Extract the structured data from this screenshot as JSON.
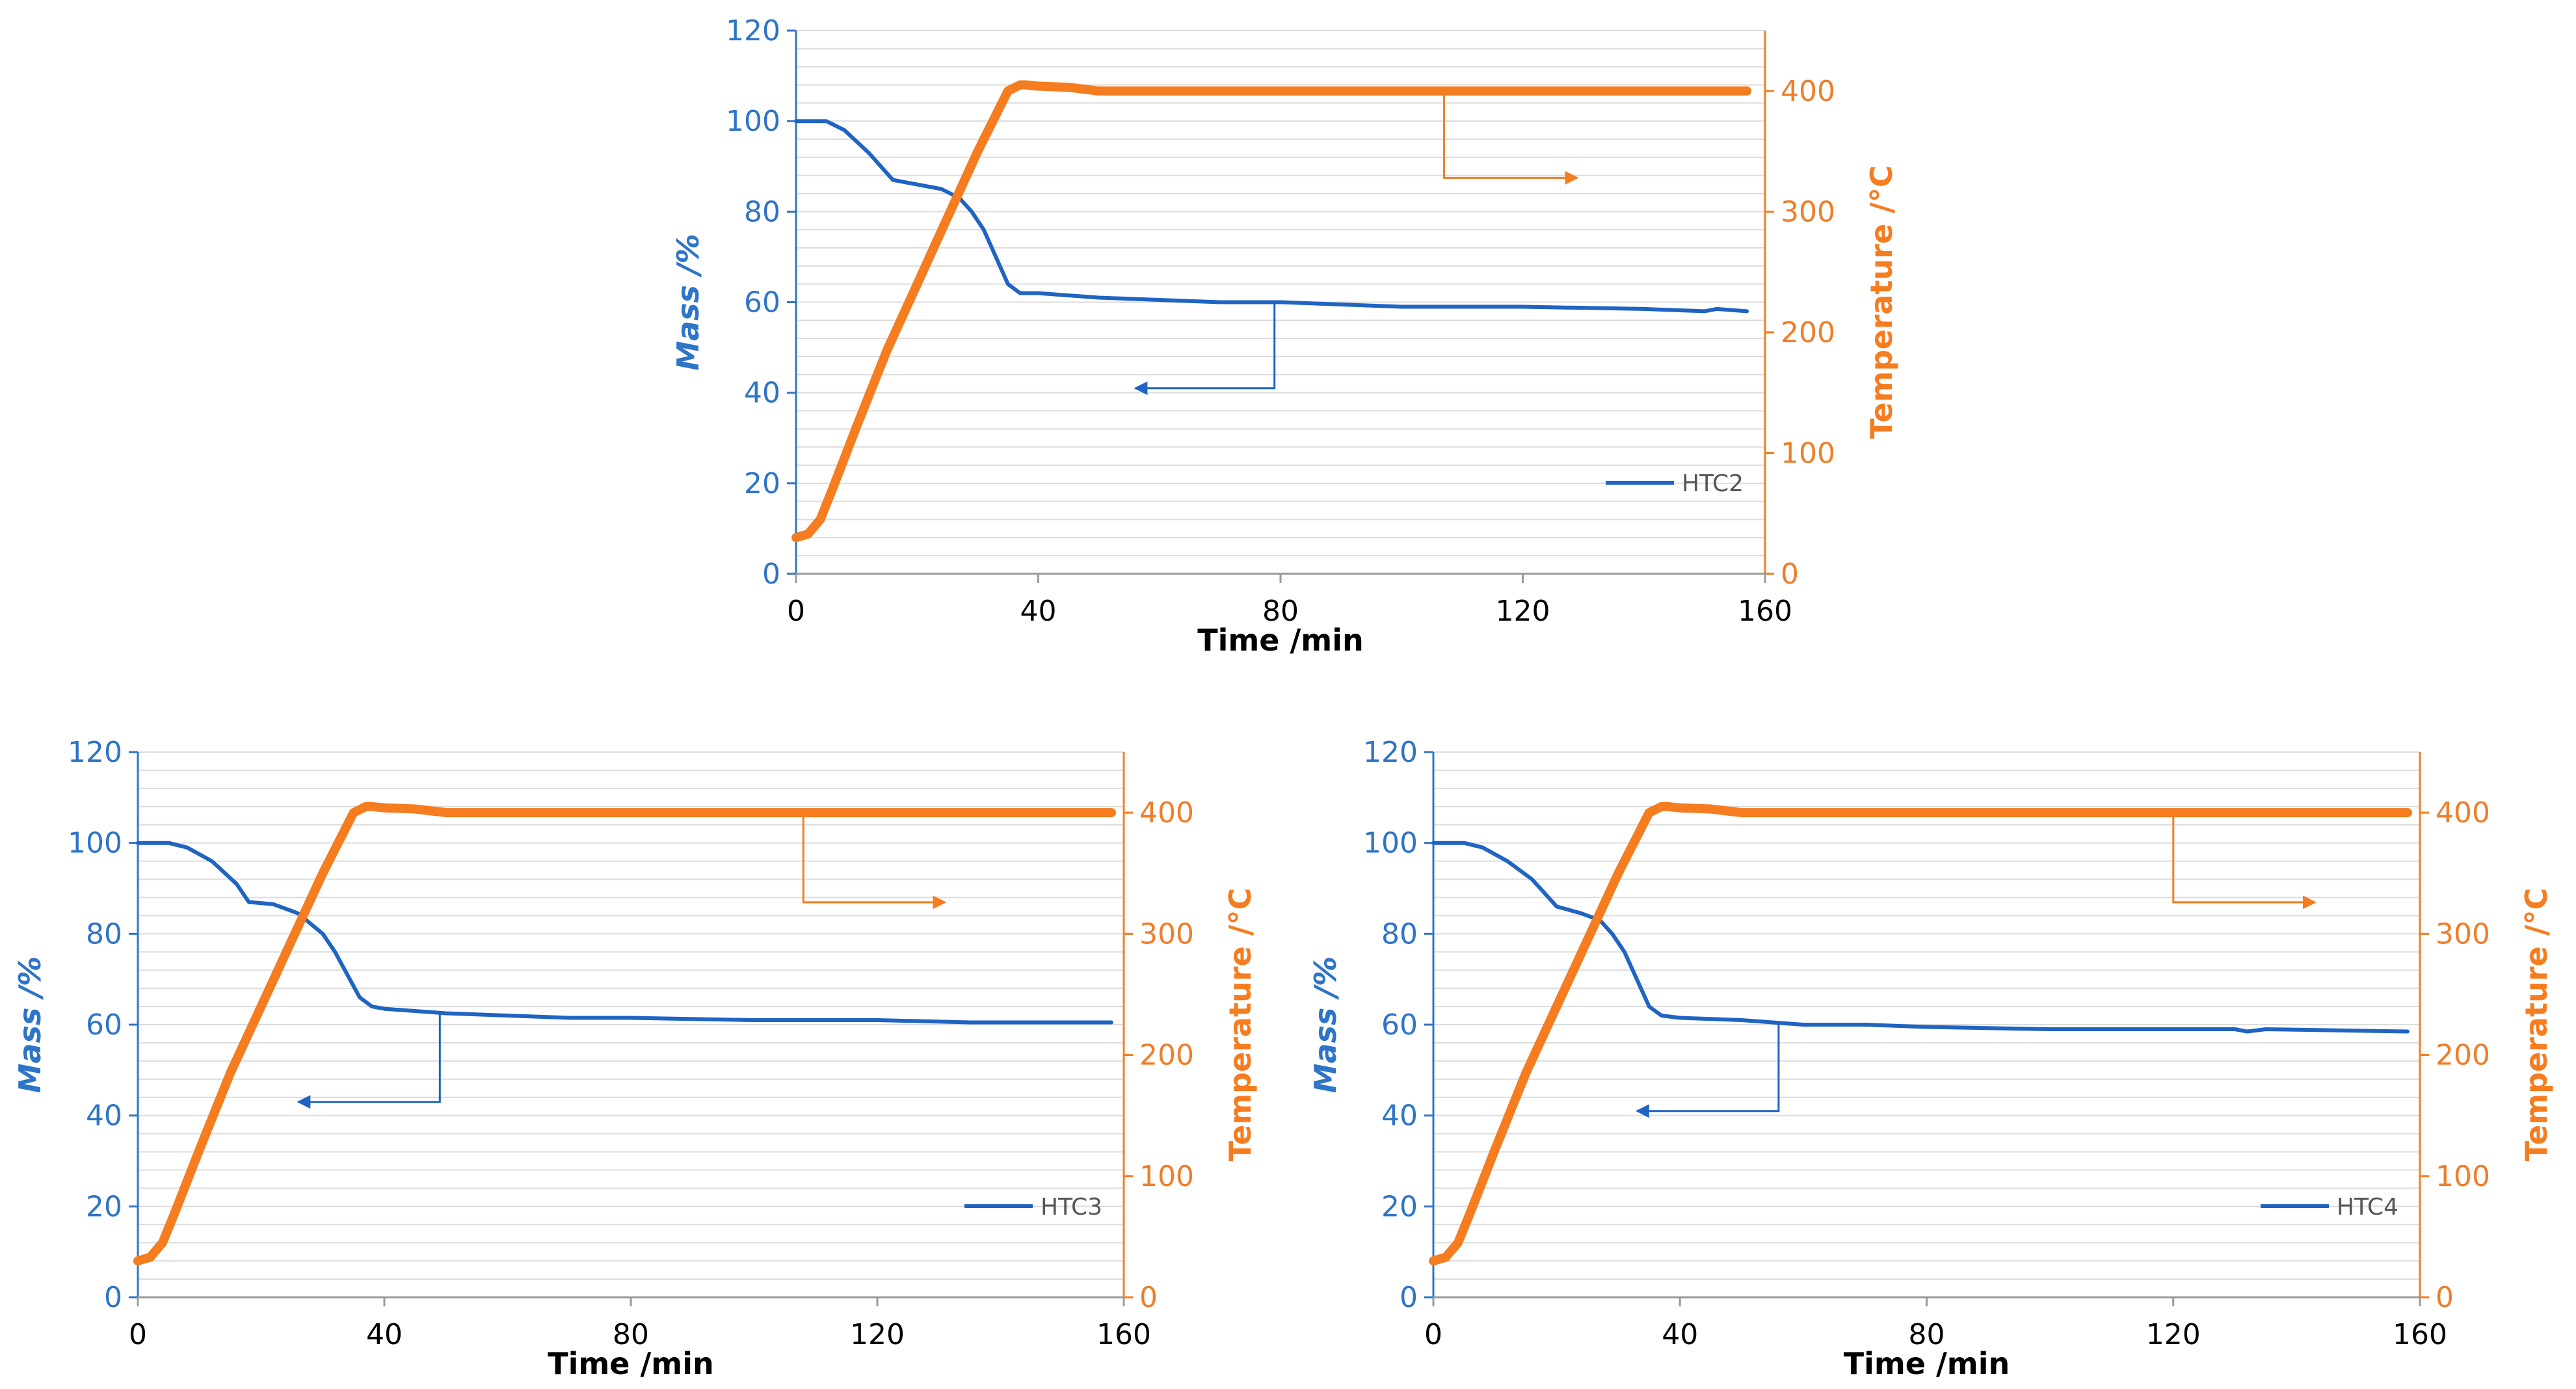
{
  "colors": {
    "mass": "#1f64c3",
    "temperature": "#f57c1f",
    "mass_axis": "#2e74c8",
    "grid": "#dcdcdc"
  },
  "chart_data": [
    {
      "type": "line",
      "series_name": "HTC2",
      "xlabel": "Time /min",
      "ylabel_left": "Mass /%",
      "ylabel_right": "Temperature /°C",
      "xlim": [
        0,
        160
      ],
      "ylim_left": [
        0,
        120
      ],
      "ylim_right": [
        0,
        450
      ],
      "x_ticks": [
        0,
        40,
        80,
        120,
        160
      ],
      "y_left_ticks": [
        0,
        20,
        40,
        60,
        80,
        100,
        120
      ],
      "y_right_ticks": [
        0,
        100,
        200,
        300,
        400
      ],
      "legend": {
        "entries": [
          "HTC2"
        ],
        "position": "bottom-right"
      },
      "series": [
        {
          "name": "HTC2",
          "axis": "left",
          "x": [
            0,
            3,
            5,
            8,
            12,
            16,
            20,
            24,
            27,
            29,
            31,
            33,
            35,
            37,
            40,
            50,
            60,
            70,
            80,
            100,
            120,
            140,
            150,
            152,
            157
          ],
          "values": [
            100,
            100,
            100,
            98,
            93,
            87,
            86,
            85,
            83,
            80,
            76,
            70,
            64,
            62,
            62,
            61,
            60.5,
            60,
            60,
            59,
            59,
            58.5,
            58,
            58.5,
            58
          ]
        },
        {
          "name": "Temperature",
          "axis": "right",
          "x": [
            0,
            2,
            4,
            6,
            10,
            15,
            20,
            25,
            30,
            35,
            37,
            38,
            40,
            45,
            50,
            157
          ],
          "values": [
            30,
            33,
            45,
            70,
            122,
            185,
            240,
            295,
            350,
            400,
            405,
            405,
            404,
            403,
            400,
            400
          ]
        }
      ],
      "annotations": [
        {
          "type": "arrow",
          "points": [
            [
              107,
              400
            ],
            [
              107,
              328
            ],
            [
              129,
              328
            ]
          ],
          "axis": "right",
          "color": "temperature"
        },
        {
          "type": "arrow",
          "points": [
            [
              79,
              60
            ],
            [
              79,
              41
            ],
            [
              56,
              41
            ]
          ],
          "axis": "left",
          "color": "mass"
        }
      ]
    },
    {
      "type": "line",
      "series_name": "HTC3",
      "xlabel": "Time /min",
      "ylabel_left": "Mass /%",
      "ylabel_right": "Temperature /°C",
      "xlim": [
        0,
        160
      ],
      "ylim_left": [
        0,
        120
      ],
      "ylim_right": [
        0,
        450
      ],
      "x_ticks": [
        0,
        40,
        80,
        120,
        160
      ],
      "y_left_ticks": [
        0,
        20,
        40,
        60,
        80,
        100,
        120
      ],
      "y_right_ticks": [
        0,
        100,
        200,
        300,
        400
      ],
      "legend": {
        "entries": [
          "HTC3"
        ],
        "position": "bottom-right"
      },
      "series": [
        {
          "name": "HTC3",
          "axis": "left",
          "x": [
            0,
            2,
            5,
            8,
            12,
            16,
            18,
            22,
            26,
            30,
            32,
            34,
            36,
            38,
            40,
            50,
            60,
            70,
            80,
            100,
            120,
            135,
            158
          ],
          "values": [
            100,
            100,
            100,
            99,
            96,
            91,
            87,
            86.5,
            84.5,
            80,
            76,
            71,
            66,
            64,
            63.5,
            62.5,
            62,
            61.5,
            61.5,
            61,
            61,
            60.5,
            60.5
          ]
        },
        {
          "name": "Temperature",
          "axis": "right",
          "x": [
            0,
            2,
            4,
            6,
            10,
            15,
            20,
            25,
            30,
            35,
            37,
            38,
            40,
            45,
            50,
            158
          ],
          "values": [
            30,
            33,
            45,
            70,
            122,
            185,
            240,
            295,
            350,
            400,
            405,
            405,
            404,
            403,
            400,
            400
          ]
        }
      ],
      "annotations": [
        {
          "type": "arrow",
          "points": [
            [
              108,
              400
            ],
            [
              108,
              326
            ],
            [
              131,
              326
            ]
          ],
          "axis": "right",
          "color": "temperature"
        },
        {
          "type": "arrow",
          "points": [
            [
              49,
              63
            ],
            [
              49,
              43
            ],
            [
              26,
              43
            ]
          ],
          "axis": "left",
          "color": "mass"
        }
      ]
    },
    {
      "type": "line",
      "series_name": "HTC4",
      "xlabel": "Time /min",
      "ylabel_left": "Mass /%",
      "ylabel_right": "Temperature /°C",
      "xlim": [
        0,
        160
      ],
      "ylim_left": [
        0,
        120
      ],
      "ylim_right": [
        0,
        450
      ],
      "x_ticks": [
        0,
        40,
        80,
        120,
        160
      ],
      "y_left_ticks": [
        0,
        20,
        40,
        60,
        80,
        100,
        120
      ],
      "y_right_ticks": [
        0,
        100,
        200,
        300,
        400
      ],
      "legend": {
        "entries": [
          "HTC4"
        ],
        "position": "bottom-right"
      },
      "series": [
        {
          "name": "HTC4",
          "axis": "left",
          "x": [
            0,
            3,
            5,
            8,
            12,
            16,
            20,
            24,
            27,
            29,
            31,
            33,
            35,
            37,
            40,
            50,
            60,
            70,
            80,
            100,
            120,
            130,
            132,
            135,
            158
          ],
          "values": [
            100,
            100,
            100,
            99,
            96,
            92,
            86,
            84.5,
            83,
            80,
            76,
            70,
            64,
            62,
            61.5,
            61,
            60,
            60,
            59.5,
            59,
            59,
            59,
            58.5,
            59,
            58.5
          ]
        },
        {
          "name": "Temperature",
          "axis": "right",
          "x": [
            0,
            2,
            4,
            6,
            10,
            15,
            20,
            25,
            30,
            35,
            37,
            38,
            40,
            45,
            50,
            158
          ],
          "values": [
            30,
            33,
            45,
            70,
            122,
            185,
            240,
            295,
            350,
            400,
            405,
            405,
            404,
            403,
            400,
            400
          ]
        }
      ],
      "annotations": [
        {
          "type": "arrow",
          "points": [
            [
              120,
              400
            ],
            [
              120,
              326
            ],
            [
              143,
              326
            ]
          ],
          "axis": "right",
          "color": "temperature"
        },
        {
          "type": "arrow",
          "points": [
            [
              56,
              60
            ],
            [
              56,
              41
            ],
            [
              33,
              41
            ]
          ],
          "axis": "left",
          "color": "mass"
        }
      ]
    }
  ]
}
